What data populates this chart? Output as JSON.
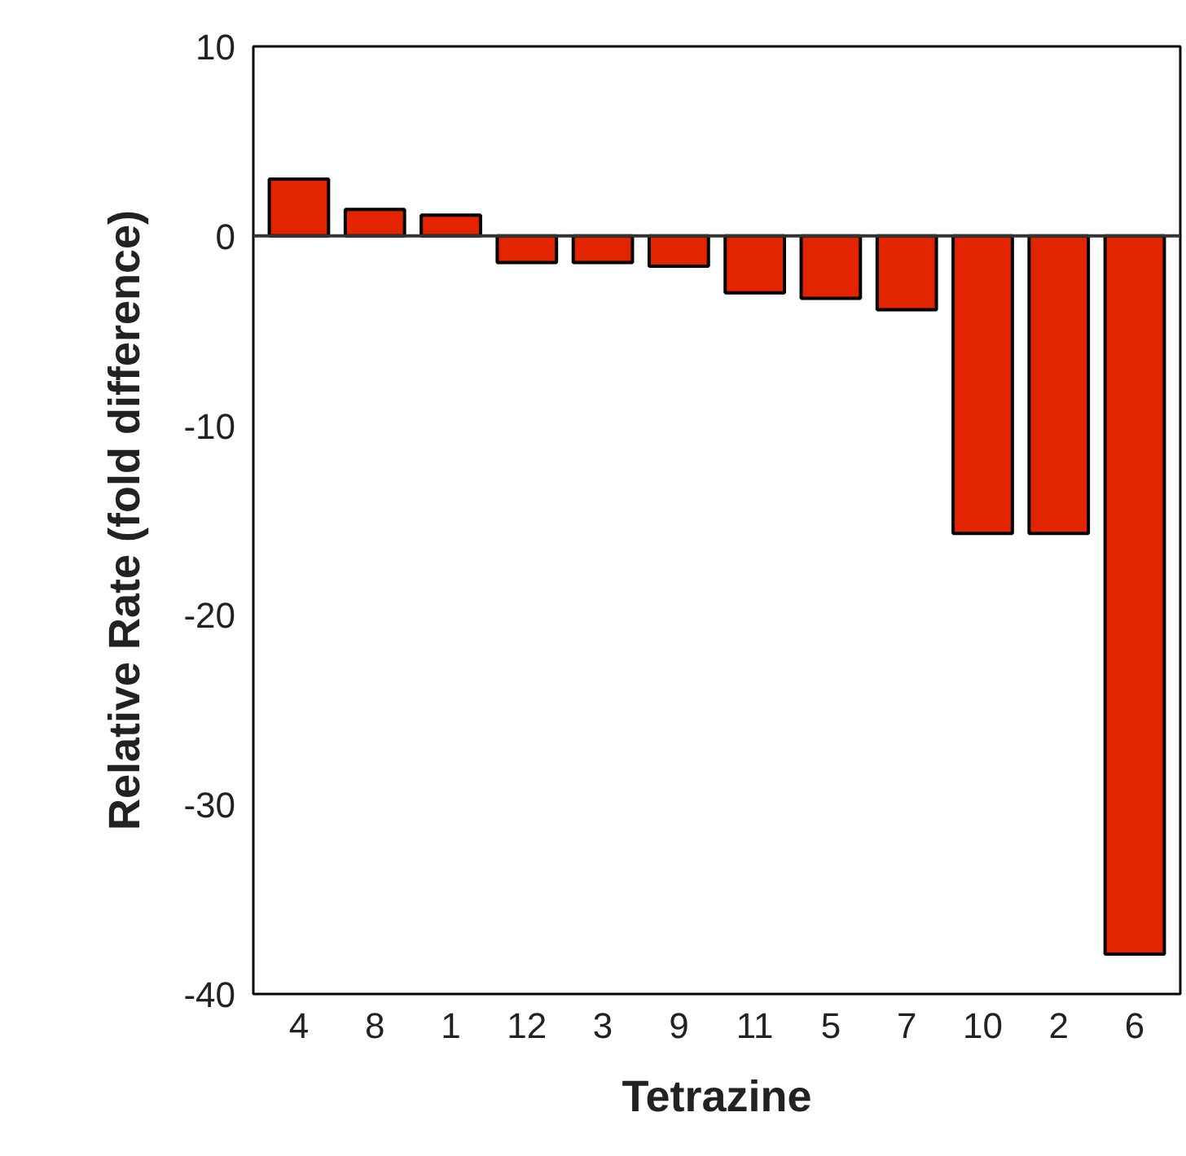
{
  "chart_data": {
    "type": "bar",
    "xlabel": "Tetrazine",
    "ylabel": "Relative Rate (fold difference)",
    "categories": [
      "4",
      "8",
      "1",
      "12",
      "3",
      "9",
      "11",
      "5",
      "7",
      "10",
      "2",
      "6"
    ],
    "values": [
      3.0,
      1.4,
      1.1,
      -1.4,
      -1.4,
      -1.6,
      -3.0,
      -3.3,
      -3.9,
      -15.7,
      -15.7,
      -37.9
    ],
    "color": "#e32400",
    "ylim": [
      -40,
      10
    ],
    "yticks": [
      -40,
      -30,
      -20,
      -10,
      0,
      10
    ]
  }
}
